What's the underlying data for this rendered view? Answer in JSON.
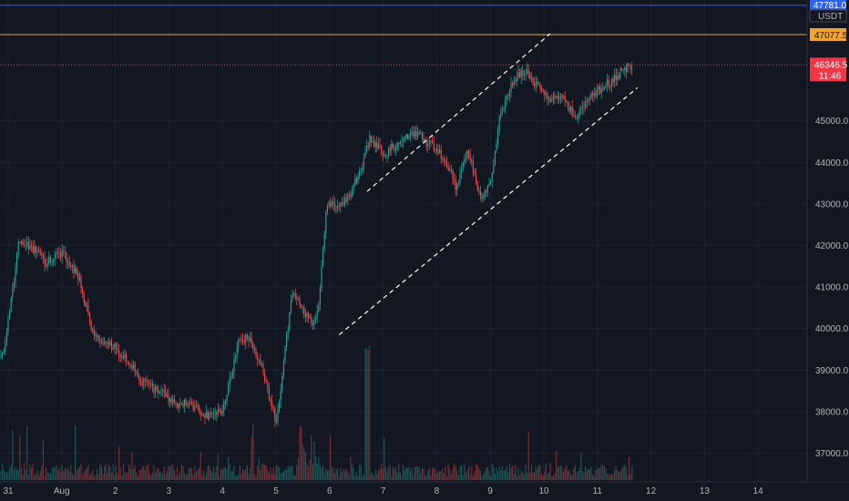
{
  "chart_data": {
    "type": "candlestick",
    "currency": "USDT",
    "x_labels": [
      "31",
      "Aug",
      "2",
      "3",
      "4",
      "5",
      "6",
      "7",
      "8",
      "9",
      "10",
      "11",
      "12",
      "13",
      "14"
    ],
    "y_ticks": [
      "37000.0",
      "38000.0",
      "39000.0",
      "40000.0",
      "41000.0",
      "42000.0",
      "43000.0",
      "44000.0",
      "45000.0"
    ],
    "ylim": [
      36300,
      47900
    ],
    "price_lines": {
      "top_value": "47781.0",
      "orange_value": "47077.5",
      "last_price": "46346.5",
      "countdown": "11:46"
    },
    "colors": {
      "background": "#131722",
      "up": "#26a69a",
      "down": "#ef5350",
      "top_line": "#2962ff",
      "orange_line": "#f0a530",
      "last_price": "#f23645",
      "channel": "#ffffff"
    },
    "trend": {
      "x_day": [
        -0.1,
        0.2,
        0.5,
        0.7,
        1.0,
        1.3,
        1.6,
        1.9,
        2.2,
        2.5,
        2.8,
        3.1,
        3.4,
        3.7,
        4.0,
        4.3,
        4.5,
        4.75,
        5.0,
        5.3,
        5.5,
        5.7,
        5.8,
        5.95,
        6.15,
        6.4,
        6.6,
        6.75,
        7.0,
        7.3,
        7.6,
        7.9,
        8.15,
        8.35,
        8.6,
        8.8,
        9.0,
        9.2,
        9.45,
        9.65,
        9.9,
        10.1,
        10.35,
        10.6,
        10.8,
        11.0,
        11.2,
        11.45,
        11.65
      ],
      "price": [
        39300,
        42100,
        41900,
        41600,
        41800,
        41300,
        39800,
        39600,
        39300,
        38700,
        38500,
        38200,
        38200,
        37900,
        38000,
        39700,
        39800,
        39000,
        37700,
        40900,
        40400,
        40100,
        40700,
        43100,
        42900,
        43300,
        43900,
        44600,
        44200,
        44500,
        44700,
        44400,
        44100,
        43400,
        44300,
        43100,
        43500,
        45300,
        46000,
        46200,
        45800,
        45500,
        45600,
        45000,
        45500,
        45700,
        45900,
        46200,
        46350
      ]
    },
    "channel": {
      "upper": [
        [
          6.7,
          43300
        ],
        [
          10.12,
          47100
        ]
      ],
      "lower": [
        [
          6.18,
          39850
        ],
        [
          11.75,
          45800
        ]
      ]
    }
  }
}
